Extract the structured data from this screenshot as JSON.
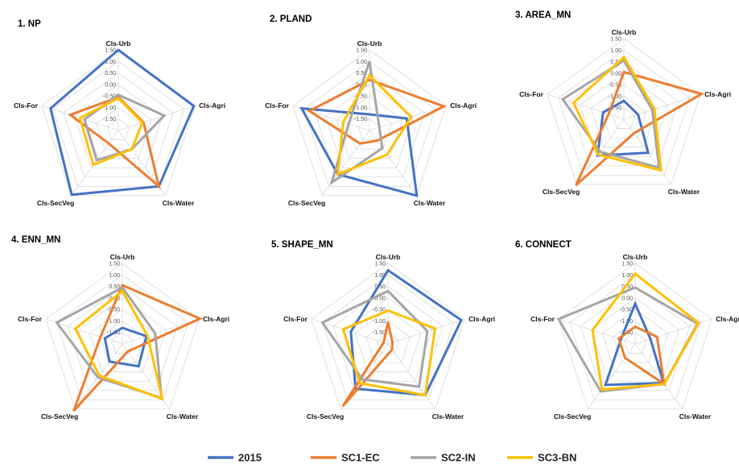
{
  "chart_data": [
    {
      "type": "radar",
      "title": "1. NP",
      "axes": [
        "Cls-Urb",
        "Cls-Agri",
        "Cls-Water",
        "Cls-SecVeg",
        "Cls-For"
      ],
      "ticks": [
        "1.50",
        "1.00",
        "0.50",
        "0.00",
        "-0.50",
        "-1.00",
        "-1.50"
      ],
      "rlim": [
        -2.0,
        1.5
      ],
      "series": [
        {
          "name": "2015",
          "values": [
            1.5,
            1.45,
            1.0,
            1.45,
            1.1
          ]
        },
        {
          "name": "SC1-EC",
          "values": [
            -0.55,
            -0.85,
            1.0,
            -1.3,
            0.2
          ]
        },
        {
          "name": "SC2-IN",
          "values": [
            -0.45,
            0.1,
            -1.0,
            -0.4,
            -0.45
          ]
        },
        {
          "name": "SC3-BN",
          "values": [
            -0.6,
            -0.9,
            -1.0,
            -0.15,
            -0.25
          ]
        }
      ]
    },
    {
      "type": "radar",
      "title": "2. PLAND",
      "axes": [
        "Cls-Urb",
        "Cls-Agri",
        "Cls-Water",
        "Cls-SecVeg",
        "Cls-For"
      ],
      "ticks": [
        "1.50",
        "1.00",
        "0.50",
        "0.00",
        "-0.50",
        "-1.00",
        "-1.50"
      ],
      "rlim": [
        -2.0,
        1.5
      ],
      "series": [
        {
          "name": "2015",
          "values": [
            -1.3,
            -0.3,
            1.5,
            0.35,
            1.1
          ]
        },
        {
          "name": "SC1-EC",
          "values": [
            0.2,
            1.4,
            -1.45,
            -1.3,
            0.75
          ]
        },
        {
          "name": "SC2-IN",
          "values": [
            1.0,
            -1.55,
            -1.05,
            0.8,
            -1.05
          ]
        },
        {
          "name": "SC3-BN",
          "values": [
            0.4,
            -0.1,
            -0.7,
            0.35,
            -0.8
          ]
        }
      ]
    },
    {
      "type": "radar",
      "title": "3. AREA_MN",
      "axes": [
        "Cls-Urb",
        "Cls-Agri",
        "Cls-Water",
        "Cls-SecVeg",
        "Cls-For"
      ],
      "ticks": [
        "1.50",
        "1.00",
        "0.50",
        "0.00",
        "-0.50",
        "-1.00",
        "-1.50"
      ],
      "rlim": [
        -2.0,
        1.5
      ],
      "series": [
        {
          "name": "2015",
          "values": [
            -1.2,
            -1.35,
            -0.2,
            -0.05,
            -1.05
          ]
        },
        {
          "name": "SC1-EC",
          "values": [
            0.05,
            1.55,
            -1.25,
            1.55,
            -1.3
          ]
        },
        {
          "name": "SC2-IN",
          "values": [
            0.55,
            -0.7,
            0.6,
            -0.25,
            0.8
          ]
        },
        {
          "name": "SC3-BN",
          "values": [
            0.7,
            -0.6,
            0.75,
            -0.1,
            0.3
          ]
        }
      ]
    },
    {
      "type": "radar",
      "title": "4. ENN_MN",
      "axes": [
        "Cls-Urb",
        "Cls-Agri",
        "Cls-Water",
        "Cls-SecVeg",
        "Cls-For"
      ],
      "ticks": [
        "1.50",
        "1.00",
        "0.50",
        "0.00",
        "-0.50",
        "-1.00",
        "-1.50"
      ],
      "rlim": [
        -2.0,
        1.5
      ],
      "series": [
        {
          "name": "2015",
          "values": [
            -1.3,
            -0.9,
            -0.8,
            -1.05,
            -1.2
          ]
        },
        {
          "name": "SC1-EC",
          "values": [
            0.55,
            1.55,
            -1.6,
            1.6,
            -1.0
          ]
        },
        {
          "name": "SC2-IN",
          "values": [
            0.45,
            -0.5,
            0.9,
            -0.2,
            1.0
          ]
        },
        {
          "name": "SC3-BN",
          "values": [
            0.3,
            -0.85,
            0.95,
            -0.3,
            0.15
          ]
        }
      ]
    },
    {
      "type": "radar",
      "title": "5. SHAPE_MN",
      "axes": [
        "Cls-Urb",
        "Cls-Agri",
        "Cls-Water",
        "Cls-SecVeg",
        "Cls-For"
      ],
      "ticks": [
        "1.50",
        "1.00",
        "0.50",
        "0.00",
        "-0.50",
        "-1.00",
        "-1.50"
      ],
      "rlim": [
        -2.0,
        1.5
      ],
      "series": [
        {
          "name": "2015",
          "values": [
            1.2,
            1.35,
            0.75,
            0.4,
            -0.3
          ]
        },
        {
          "name": "SC1-EC",
          "values": [
            -1.05,
            -1.8,
            -1.7,
            1.35,
            -1.8
          ]
        },
        {
          "name": "SC2-IN",
          "values": [
            0.3,
            -0.2,
            0.3,
            -0.1,
            1.0
          ]
        },
        {
          "name": "SC3-BN",
          "values": [
            -0.55,
            0.15,
            0.75,
            0.1,
            0.05
          ]
        }
      ]
    },
    {
      "type": "radar",
      "title": "6. CONNECT",
      "axes": [
        "Cls-Urb",
        "Cls-Agri",
        "Cls-Water",
        "Cls-SecVeg",
        "Cls-For"
      ],
      "ticks": [
        "1.50",
        "1.00",
        "0.50",
        "0.00",
        "-0.50",
        "-1.00",
        "-1.50"
      ],
      "rlim": [
        -2.0,
        1.5
      ],
      "series": [
        {
          "name": "2015",
          "values": [
            -0.25,
            -1.3,
            0.1,
            0.2,
            -1.35
          ]
        },
        {
          "name": "SC1-EC",
          "values": [
            -1.25,
            -1.0,
            0.15,
            -1.25,
            -1.25
          ]
        },
        {
          "name": "SC2-IN",
          "values": [
            0.45,
            0.85,
            0.15,
            0.55,
            1.5
          ]
        },
        {
          "name": "SC3-BN",
          "values": [
            1.05,
            0.9,
            0.15,
            0.45,
            -0.05
          ]
        }
      ]
    }
  ],
  "legend": [
    {
      "name": "2015",
      "color": "#4472c4"
    },
    {
      "name": "SC1-EC",
      "color": "#ed7d31"
    },
    {
      "name": "SC2-IN",
      "color": "#a5a5a5"
    },
    {
      "name": "SC3-BN",
      "color": "#ffc000"
    }
  ]
}
